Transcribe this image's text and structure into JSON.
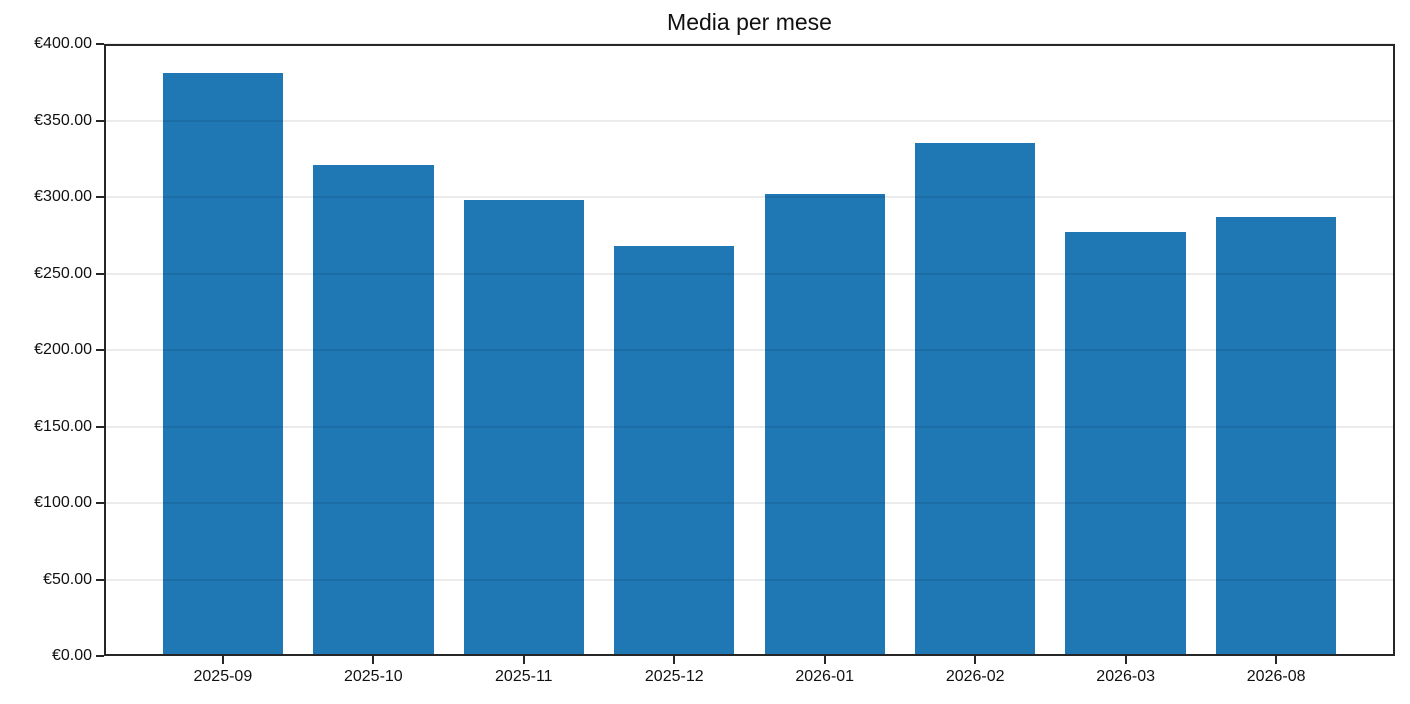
{
  "figure": {
    "title": "Media per mese"
  },
  "chart_data": {
    "type": "bar",
    "title": "Media per mese",
    "categories": [
      "2025-09",
      "2025-10",
      "2025-11",
      "2025-12",
      "2026-01",
      "2026-02",
      "2026-03",
      "2026-08"
    ],
    "values": [
      381,
      321,
      298,
      268,
      302,
      335,
      277,
      287
    ],
    "xlabel": "",
    "ylabel": "",
    "ylim": [
      0,
      400
    ],
    "ytick_step": 50,
    "ytick_labels": [
      "€0.00",
      "€50.00",
      "€100.00",
      "€150.00",
      "€200.00",
      "€250.00",
      "€300.00",
      "€350.00",
      "€400.00"
    ],
    "grid": true,
    "grid_on_top_of_bars": true,
    "legend": null,
    "bar_width_fraction": 0.8,
    "colors": {
      "bar": "#1f77b4",
      "axis": "#262626",
      "grid": "rgba(0,0,0,0.08)",
      "text": "#111111",
      "background": "#ffffff"
    }
  }
}
